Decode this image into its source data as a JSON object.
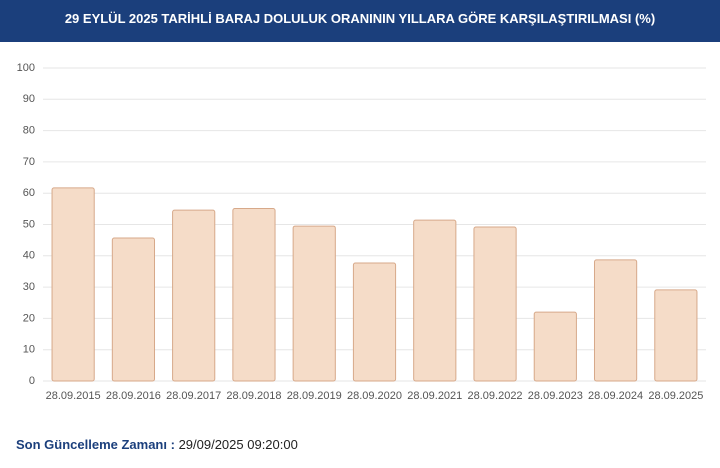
{
  "chart_data": {
    "type": "bar",
    "title": "29 EYLÜL 2025 TARİHLİ BARAJ DOLULUK ORANININ YILLARA GÖRE KARŞILAŞTIRILMASI (%)",
    "categories": [
      "28.09.2015",
      "28.09.2016",
      "28.09.2017",
      "28.09.2018",
      "28.09.2019",
      "28.09.2020",
      "28.09.2021",
      "28.09.2022",
      "28.09.2023",
      "28.09.2024",
      "28.09.2025"
    ],
    "values": [
      61.7,
      45.7,
      54.6,
      55.1,
      49.5,
      37.7,
      51.4,
      49.2,
      22.0,
      38.7,
      29.1
    ],
    "color": "#f5dcc8",
    "border_color": "#d7a98a",
    "ylim": [
      0,
      100
    ],
    "yticks": [
      0,
      10,
      20,
      30,
      40,
      50,
      60,
      70,
      80,
      90,
      100
    ],
    "grid": true
  },
  "footer": {
    "label": "Son Güncelleme Zamanı :",
    "value": "29/09/2025 09:20:00"
  }
}
